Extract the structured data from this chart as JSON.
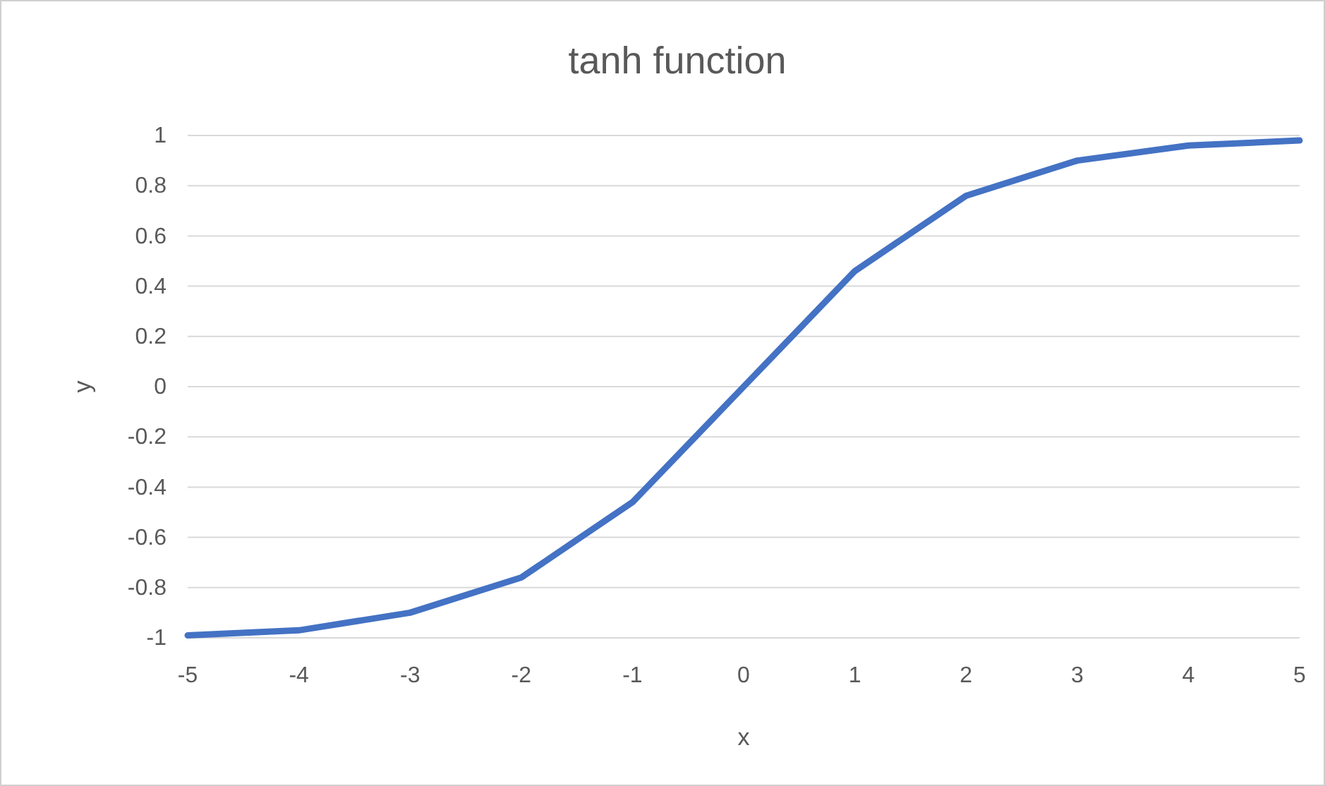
{
  "chart_data": {
    "type": "line",
    "title": "tanh function",
    "xlabel": "x",
    "ylabel": "y",
    "categories": [
      "-5",
      "-4",
      "-3",
      "-2",
      "-1",
      "0",
      "1",
      "2",
      "3",
      "4",
      "5"
    ],
    "series": [
      {
        "color": "#4472c4",
        "values": [
          -0.99,
          -0.97,
          -0.9,
          -0.76,
          -0.46,
          0,
          0.46,
          0.76,
          0.9,
          0.96,
          0.98
        ]
      }
    ],
    "ylim": [
      -1,
      1
    ],
    "yticks": [
      -1,
      -0.8,
      -0.6,
      -0.4,
      -0.2,
      0,
      0.2,
      0.4,
      0.6,
      0.8,
      1
    ],
    "grid": "y",
    "legend": false,
    "marker": "none",
    "line_style": "solid"
  }
}
